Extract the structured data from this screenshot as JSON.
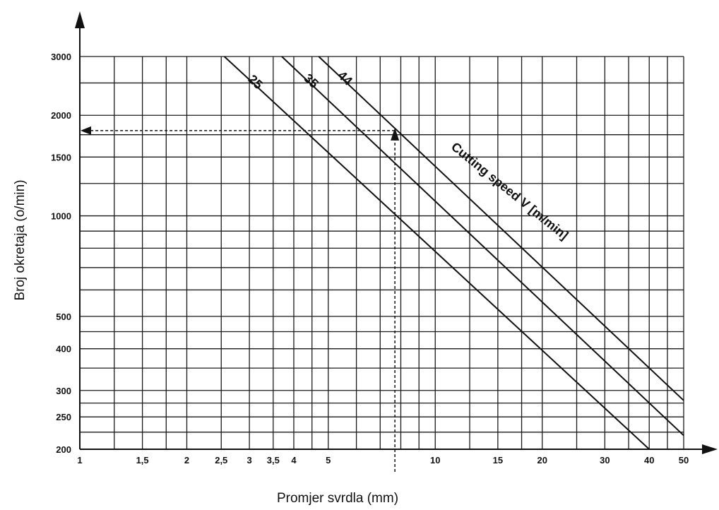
{
  "chart_data": {
    "type": "line",
    "title": "",
    "xlabel": "Promjer svrdla (mm)",
    "ylabel": "Broj okretaja (o/min)",
    "x_scale": "log",
    "y_scale": "log",
    "xlim": [
      1,
      50
    ],
    "ylim": [
      200,
      3000
    ],
    "x_ticks": [
      {
        "value": 1,
        "label": "1"
      },
      {
        "value": 1.5,
        "label": "1,5"
      },
      {
        "value": 2,
        "label": "2"
      },
      {
        "value": 2.5,
        "label": "2,5"
      },
      {
        "value": 3,
        "label": "3"
      },
      {
        "value": 3.5,
        "label": "3,5"
      },
      {
        "value": 4,
        "label": "4"
      },
      {
        "value": 5,
        "label": "5"
      },
      {
        "value": 10,
        "label": "10"
      },
      {
        "value": 15,
        "label": "15"
      },
      {
        "value": 20,
        "label": "20"
      },
      {
        "value": 30,
        "label": "30"
      },
      {
        "value": 40,
        "label": "40"
      },
      {
        "value": 50,
        "label": "50"
      }
    ],
    "x_grid": [
      1,
      1.25,
      1.5,
      1.75,
      2,
      2.5,
      3,
      3.5,
      4,
      4.5,
      5,
      6,
      7,
      8,
      9,
      10,
      12.5,
      15,
      17.5,
      20,
      25,
      30,
      35,
      40,
      45,
      50
    ],
    "y_ticks": [
      {
        "value": 200,
        "label": "200"
      },
      {
        "value": 250,
        "label": "250"
      },
      {
        "value": 300,
        "label": "300"
      },
      {
        "value": 400,
        "label": "400"
      },
      {
        "value": 500,
        "label": "500"
      },
      {
        "value": 1000,
        "label": "1000"
      },
      {
        "value": 1500,
        "label": "1500"
      },
      {
        "value": 2000,
        "label": "2000"
      },
      {
        "value": 3000,
        "label": "3000"
      }
    ],
    "y_grid": [
      200,
      225,
      250,
      275,
      300,
      350,
      400,
      450,
      500,
      600,
      700,
      800,
      900,
      1000,
      1250,
      1500,
      1750,
      2000,
      2500,
      3000
    ],
    "grid": true,
    "series": [
      {
        "name": "25",
        "x": [
          2.55,
          40
        ],
        "y": [
          3000,
          200
        ]
      },
      {
        "name": "35",
        "x": [
          3.7,
          50
        ],
        "y": [
          3000,
          220
        ]
      },
      {
        "name": "44",
        "x": [
          4.7,
          50
        ],
        "y": [
          3000,
          280
        ]
      }
    ],
    "annotation": "Cutting speed V [m/min]",
    "example": {
      "x": 7.7,
      "y": 1800
    }
  }
}
